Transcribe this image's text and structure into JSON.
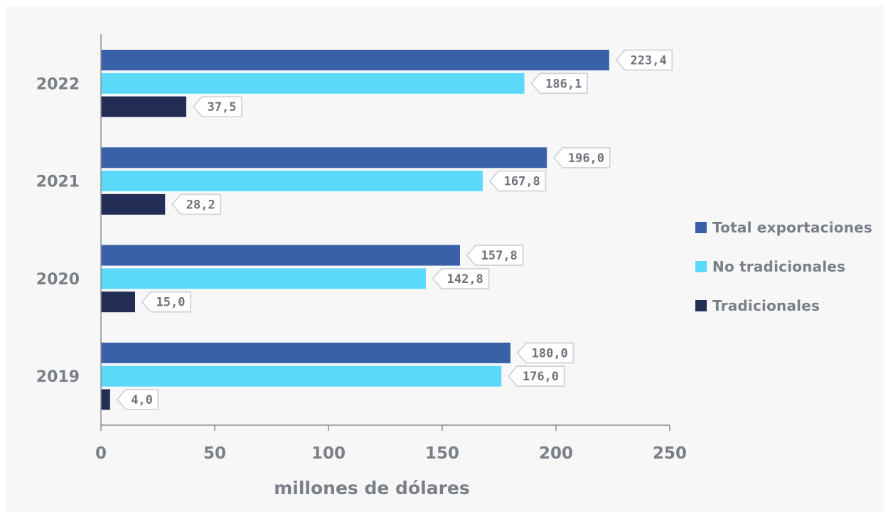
{
  "chart_data": {
    "type": "bar",
    "orientation": "horizontal",
    "categories": [
      "2022",
      "2021",
      "2020",
      "2019"
    ],
    "series": [
      {
        "name": "Total exportaciones",
        "color": "#3a60a8",
        "values": [
          223.4,
          196.0,
          157.8,
          180.0
        ],
        "labels": [
          "223,4",
          "196,0",
          "157,8",
          "180,0"
        ]
      },
      {
        "name": "No tradicionales",
        "color": "#5ad9fb",
        "values": [
          186.1,
          167.8,
          142.8,
          176.0
        ],
        "labels": [
          "186,1",
          "167,8",
          "142,8",
          "176,0"
        ]
      },
      {
        "name": "Tradicionales",
        "color": "#232d55",
        "values": [
          37.5,
          28.2,
          15.0,
          4.0
        ],
        "labels": [
          "37,5",
          "28,2",
          "15,0",
          "4,0"
        ]
      }
    ],
    "xlabel": "millones de dólares",
    "xlim": [
      0,
      250
    ],
    "xticks": [
      "0",
      "50",
      "100",
      "150",
      "200",
      "250"
    ],
    "grid": false,
    "legend_position": "right"
  }
}
